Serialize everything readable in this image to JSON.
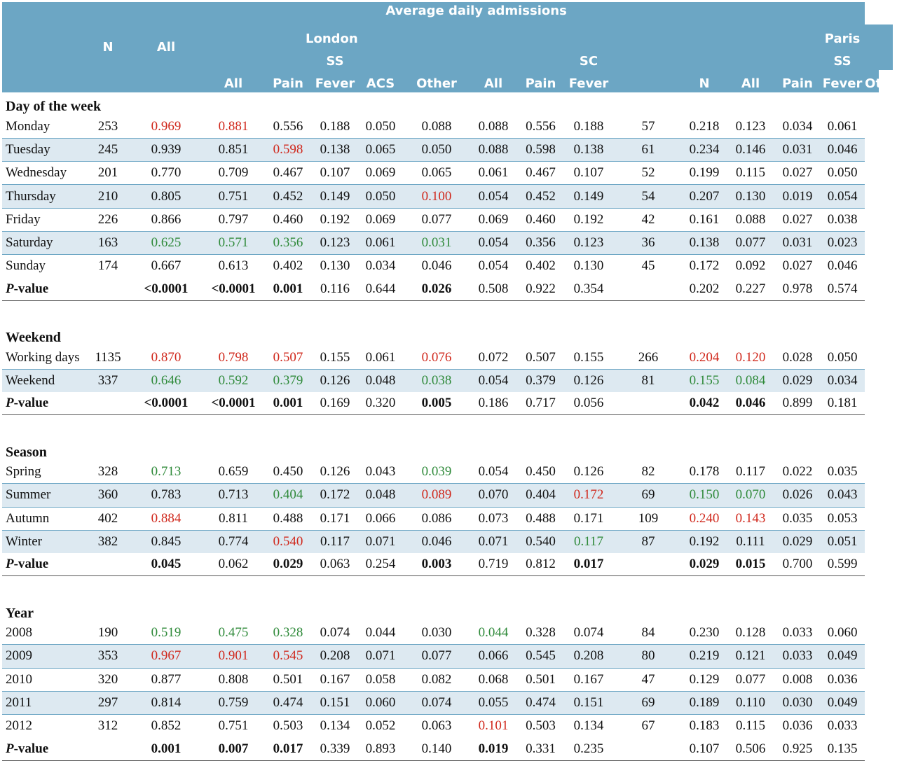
{
  "header": {
    "span_title": "Average daily admissions",
    "col_N": "N",
    "col_All": "All",
    "london_title": [
      "London",
      "SS"
    ],
    "london_cols": [
      "All",
      "Pain",
      "Fever",
      "ACS",
      "Other"
    ],
    "london_sc_title": "SC",
    "london_sc_cols": [
      "All",
      "Pain",
      "Fever"
    ],
    "paris_N": "N",
    "paris_All": "All",
    "paris_title": [
      "Paris",
      "SS"
    ],
    "paris_cols": [
      "Pain",
      "Fever",
      "Other"
    ]
  },
  "colors": {
    "header_bg": "#6ca6c4",
    "shade": "#dde9f1",
    "high": "#d0281c",
    "low": "#2f8a3a"
  },
  "sections": [
    {
      "title": "Day of the week",
      "rows": [
        {
          "label": "Monday",
          "cells": [
            "253",
            "0.969",
            "0.881",
            "0.556",
            "0.188",
            "0.050",
            "0.088",
            "0.088",
            "0.556",
            "0.188",
            "57",
            "0.218",
            "0.123",
            "0.034",
            "0.061"
          ],
          "colors": [
            "",
            "r",
            "r",
            "",
            "",
            "",
            "",
            "",
            "",
            "",
            "",
            "",
            "",
            "",
            ""
          ]
        },
        {
          "label": "Tuesday",
          "cells": [
            "245",
            "0.939",
            "0.851",
            "0.598",
            "0.138",
            "0.065",
            "0.050",
            "0.088",
            "0.598",
            "0.138",
            "61",
            "0.234",
            "0.146",
            "0.031",
            "0.046"
          ],
          "colors": [
            "",
            "",
            "",
            "r",
            "",
            "",
            "",
            "",
            "",
            "",
            "",
            "",
            "",
            "",
            ""
          ]
        },
        {
          "label": "Wednesday",
          "cells": [
            "201",
            "0.770",
            "0.709",
            "0.467",
            "0.107",
            "0.069",
            "0.065",
            "0.061",
            "0.467",
            "0.107",
            "52",
            "0.199",
            "0.115",
            "0.027",
            "0.050"
          ],
          "colors": [
            "",
            "",
            "",
            "",
            "",
            "",
            "",
            "",
            "",
            "",
            "",
            "",
            "",
            "",
            ""
          ]
        },
        {
          "label": "Thursday",
          "cells": [
            "210",
            "0.805",
            "0.751",
            "0.452",
            "0.149",
            "0.050",
            "0.100",
            "0.054",
            "0.452",
            "0.149",
            "54",
            "0.207",
            "0.130",
            "0.019",
            "0.054"
          ],
          "colors": [
            "",
            "",
            "",
            "",
            "",
            "",
            "r",
            "",
            "",
            "",
            "",
            "",
            "",
            "",
            ""
          ]
        },
        {
          "label": "Friday",
          "cells": [
            "226",
            "0.866",
            "0.797",
            "0.460",
            "0.192",
            "0.069",
            "0.077",
            "0.069",
            "0.460",
            "0.192",
            "42",
            "0.161",
            "0.088",
            "0.027",
            "0.038"
          ],
          "colors": [
            "",
            "",
            "",
            "",
            "",
            "",
            "",
            "",
            "",
            "",
            "",
            "",
            "",
            "",
            ""
          ]
        },
        {
          "label": "Saturday",
          "cells": [
            "163",
            "0.625",
            "0.571",
            "0.356",
            "0.123",
            "0.061",
            "0.031",
            "0.054",
            "0.356",
            "0.123",
            "36",
            "0.138",
            "0.077",
            "0.031",
            "0.023"
          ],
          "colors": [
            "",
            "g",
            "g",
            "g",
            "",
            "",
            "g",
            "",
            "",
            "",
            "",
            "",
            "",
            "",
            ""
          ]
        },
        {
          "label": "Sunday",
          "cells": [
            "174",
            "0.667",
            "0.613",
            "0.402",
            "0.130",
            "0.034",
            "0.046",
            "0.054",
            "0.402",
            "0.130",
            "45",
            "0.172",
            "0.092",
            "0.027",
            "0.046"
          ],
          "colors": [
            "",
            "",
            "",
            "",
            "",
            "",
            "",
            "",
            "",
            "",
            "",
            "",
            "",
            "",
            ""
          ]
        }
      ],
      "pvalue": {
        "label_p": "P",
        "label_rest": "-value",
        "cells": [
          "",
          "<0.0001",
          "<0.0001",
          "0.001",
          "0.116",
          "0.644",
          "0.026",
          "0.508",
          "0.922",
          "0.354",
          "",
          "0.202",
          "0.227",
          "0.978",
          "0.574"
        ],
        "bold": [
          0,
          1,
          1,
          1,
          0,
          0,
          1,
          0,
          0,
          0,
          0,
          0,
          0,
          0,
          0
        ]
      }
    },
    {
      "title": "Weekend",
      "rows": [
        {
          "label": "Working days",
          "cells": [
            "1135",
            "0.870",
            "0.798",
            "0.507",
            "0.155",
            "0.061",
            "0.076",
            "0.072",
            "0.507",
            "0.155",
            "266",
            "0.204",
            "0.120",
            "0.028",
            "0.050"
          ],
          "colors": [
            "",
            "r",
            "r",
            "r",
            "",
            "",
            "r",
            "",
            "",
            "",
            "",
            "r",
            "r",
            "",
            ""
          ]
        },
        {
          "label": "Weekend",
          "cells": [
            "337",
            "0.646",
            "0.592",
            "0.379",
            "0.126",
            "0.048",
            "0.038",
            "0.054",
            "0.379",
            "0.126",
            "81",
            "0.155",
            "0.084",
            "0.029",
            "0.034"
          ],
          "colors": [
            "",
            "g",
            "g",
            "g",
            "",
            "",
            "g",
            "",
            "",
            "",
            "",
            "g",
            "g",
            "",
            ""
          ]
        }
      ],
      "pvalue": {
        "label_p": "P",
        "label_rest": "-value",
        "cells": [
          "",
          "<0.0001",
          "<0.0001",
          "0.001",
          "0.169",
          "0.320",
          "0.005",
          "0.186",
          "0.717",
          "0.056",
          "",
          "0.042",
          "0.046",
          "0.899",
          "0.181"
        ],
        "bold": [
          0,
          1,
          1,
          1,
          0,
          0,
          1,
          0,
          0,
          0,
          0,
          1,
          1,
          0,
          0
        ]
      }
    },
    {
      "title": "Season",
      "rows": [
        {
          "label": "Spring",
          "cells": [
            "328",
            "0.713",
            "0.659",
            "0.450",
            "0.126",
            "0.043",
            "0.039",
            "0.054",
            "0.450",
            "0.126",
            "82",
            "0.178",
            "0.117",
            "0.022",
            "0.035"
          ],
          "colors": [
            "",
            "g",
            "",
            "",
            "",
            "",
            "g",
            "",
            "",
            "",
            "",
            "",
            "",
            "",
            ""
          ]
        },
        {
          "label": "Summer",
          "cells": [
            "360",
            "0.783",
            "0.713",
            "0.404",
            "0.172",
            "0.048",
            "0.089",
            "0.070",
            "0.404",
            "0.172",
            "69",
            "0.150",
            "0.070",
            "0.026",
            "0.043"
          ],
          "colors": [
            "",
            "",
            "",
            "g",
            "",
            "",
            "r",
            "",
            "",
            "r",
            "",
            "g",
            "g",
            "",
            ""
          ]
        },
        {
          "label": "Autumn",
          "cells": [
            "402",
            "0.884",
            "0.811",
            "0.488",
            "0.171",
            "0.066",
            "0.086",
            "0.073",
            "0.488",
            "0.171",
            "109",
            "0.240",
            "0.143",
            "0.035",
            "0.053"
          ],
          "colors": [
            "",
            "r",
            "",
            "",
            "",
            "",
            "",
            "",
            "",
            "",
            "",
            "r",
            "r",
            "",
            ""
          ]
        },
        {
          "label": "Winter",
          "cells": [
            "382",
            "0.845",
            "0.774",
            "0.540",
            "0.117",
            "0.071",
            "0.046",
            "0.071",
            "0.540",
            "0.117",
            "87",
            "0.192",
            "0.111",
            "0.029",
            "0.051"
          ],
          "colors": [
            "",
            "",
            "",
            "r",
            "",
            "",
            "",
            "",
            "",
            "g",
            "",
            "",
            "",
            "",
            ""
          ]
        }
      ],
      "pvalue": {
        "label_p": "P",
        "label_rest": "-value",
        "cells": [
          "",
          "0.045",
          "0.062",
          "0.029",
          "0.063",
          "0.254",
          "0.003",
          "0.719",
          "0.812",
          "0.017",
          "",
          "0.029",
          "0.015",
          "0.700",
          "0.599"
        ],
        "bold": [
          0,
          1,
          0,
          1,
          0,
          0,
          1,
          0,
          0,
          1,
          0,
          1,
          1,
          0,
          0
        ]
      }
    },
    {
      "title": "Year",
      "rows": [
        {
          "label": "2008",
          "cells": [
            "190",
            "0.519",
            "0.475",
            "0.328",
            "0.074",
            "0.044",
            "0.030",
            "0.044",
            "0.328",
            "0.074",
            "84",
            "0.230",
            "0.128",
            "0.033",
            "0.060"
          ],
          "colors": [
            "",
            "g",
            "g",
            "g",
            "",
            "",
            "",
            "g",
            "",
            "",
            "",
            "",
            "",
            "",
            ""
          ]
        },
        {
          "label": "2009",
          "cells": [
            "353",
            "0.967",
            "0.901",
            "0.545",
            "0.208",
            "0.071",
            "0.077",
            "0.066",
            "0.545",
            "0.208",
            "80",
            "0.219",
            "0.121",
            "0.033",
            "0.049"
          ],
          "colors": [
            "",
            "r",
            "r",
            "r",
            "",
            "",
            "",
            "",
            "",
            "",
            "",
            "",
            "",
            "",
            ""
          ]
        },
        {
          "label": "2010",
          "cells": [
            "320",
            "0.877",
            "0.808",
            "0.501",
            "0.167",
            "0.058",
            "0.082",
            "0.068",
            "0.501",
            "0.167",
            "47",
            "0.129",
            "0.077",
            "0.008",
            "0.036"
          ],
          "colors": [
            "",
            "",
            "",
            "",
            "",
            "",
            "",
            "",
            "",
            "",
            "",
            "",
            "",
            "",
            ""
          ]
        },
        {
          "label": "2011",
          "cells": [
            "297",
            "0.814",
            "0.759",
            "0.474",
            "0.151",
            "0.060",
            "0.074",
            "0.055",
            "0.474",
            "0.151",
            "69",
            "0.189",
            "0.110",
            "0.030",
            "0.049"
          ],
          "colors": [
            "",
            "",
            "",
            "",
            "",
            "",
            "",
            "",
            "",
            "",
            "",
            "",
            "",
            "",
            ""
          ]
        },
        {
          "label": "2012",
          "cells": [
            "312",
            "0.852",
            "0.751",
            "0.503",
            "0.134",
            "0.052",
            "0.063",
            "0.101",
            "0.503",
            "0.134",
            "67",
            "0.183",
            "0.115",
            "0.036",
            "0.033"
          ],
          "colors": [
            "",
            "",
            "",
            "",
            "",
            "",
            "",
            "r",
            "",
            "",
            "",
            "",
            "",
            "",
            ""
          ]
        }
      ],
      "pvalue": {
        "label_p": "P",
        "label_rest": "-value",
        "cells": [
          "",
          "0.001",
          "0.007",
          "0.017",
          "0.339",
          "0.893",
          "0.140",
          "0.019",
          "0.331",
          "0.235",
          "",
          "0.107",
          "0.506",
          "0.925",
          "0.135"
        ],
        "bold": [
          0,
          1,
          1,
          1,
          0,
          0,
          0,
          1,
          0,
          0,
          0,
          0,
          0,
          0,
          0
        ]
      }
    }
  ]
}
